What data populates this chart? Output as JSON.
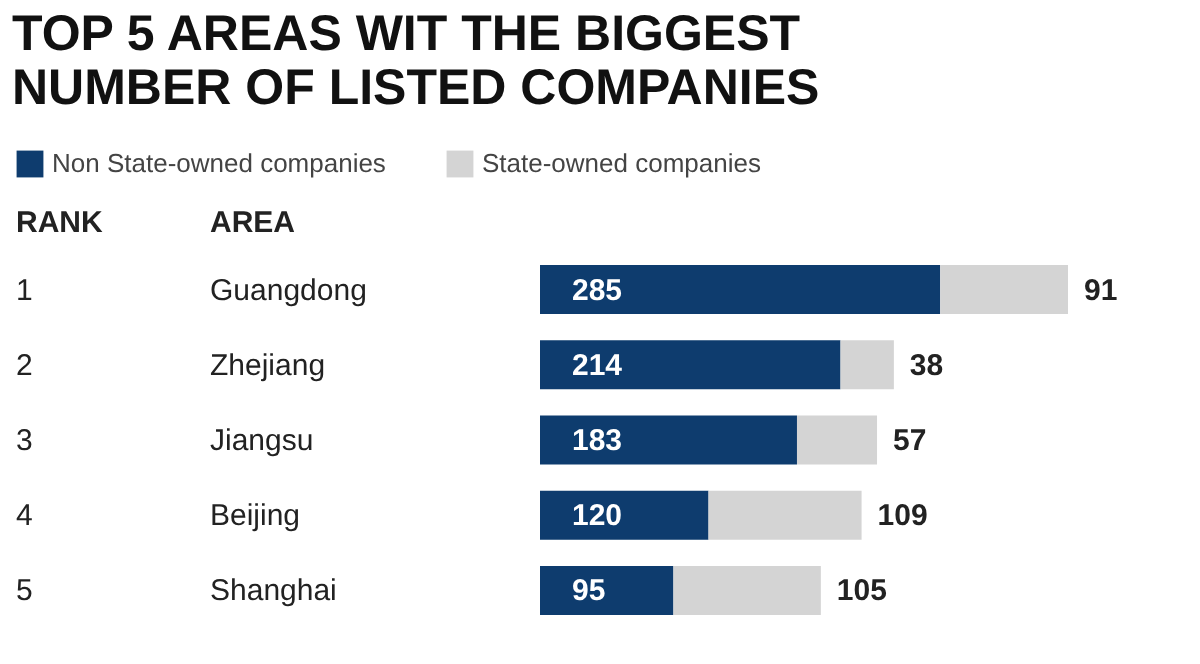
{
  "chart_data": {
    "type": "bar",
    "orientation": "horizontal",
    "stacked": true,
    "data_labels": true,
    "legend": "top left",
    "title": "TOP 5 AREAS WIT THE BIGGEST\nNUMBER OF LISTED COMPANIES",
    "categories": [
      "Guangdong",
      "Zhejiang",
      "Jiangsu",
      "Beijing",
      "Shanghai"
    ],
    "series": [
      {
        "name": "Non State-owned companies",
        "color": "#0e3c6e",
        "values": [
          285,
          214,
          183,
          120,
          95
        ]
      },
      {
        "name": "State-owned companies",
        "color": "#d4d4d4",
        "values": [
          91,
          38,
          57,
          109,
          105
        ]
      }
    ],
    "annotations": [
      "RANK",
      "AREA",
      "1",
      "2",
      "3",
      "4",
      "5"
    ]
  }
}
